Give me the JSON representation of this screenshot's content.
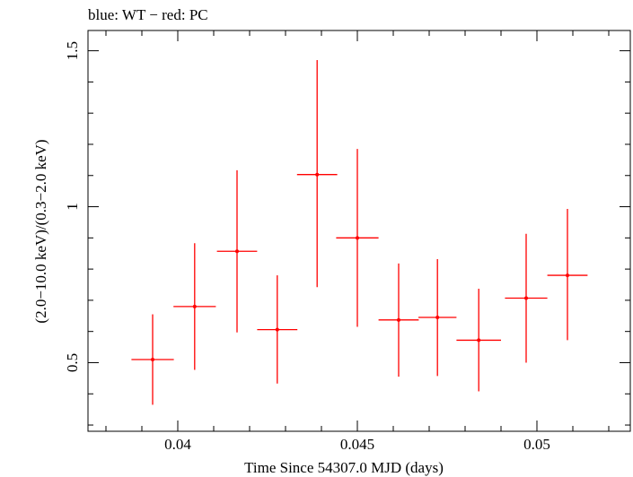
{
  "chart_data": {
    "type": "scatter",
    "title": "blue: WT − red: PC",
    "xlabel": "Time Since 54307.0 MJD (days)",
    "ylabel": "(2.0−10.0 keV)/(0.3−2.0 keV)",
    "xlim": [
      0.0375,
      0.0526
    ],
    "ylim": [
      0.28,
      1.565
    ],
    "x_ticks": [
      0.04,
      0.045,
      0.05
    ],
    "x_tick_labels": [
      "0.04",
      "0.045",
      "0.05"
    ],
    "y_ticks": [
      0.5,
      1,
      1.5
    ],
    "y_tick_labels": [
      "0.5",
      "1",
      "1.5"
    ],
    "grid": false,
    "series": [
      {
        "color": "#ff0000",
        "points": [
          {
            "x": 0.0393,
            "y": 0.51,
            "xerr": 0.00059,
            "ylo": 0.365,
            "yhi": 0.655
          },
          {
            "x": 0.04047,
            "y": 0.68,
            "xerr": 0.00059,
            "ylo": 0.477,
            "yhi": 0.883
          },
          {
            "x": 0.04165,
            "y": 0.857,
            "xerr": 0.00056,
            "ylo": 0.597,
            "yhi": 1.117
          },
          {
            "x": 0.04277,
            "y": 0.606,
            "xerr": 0.00056,
            "ylo": 0.433,
            "yhi": 0.78
          },
          {
            "x": 0.04388,
            "y": 1.103,
            "xerr": 0.00056,
            "ylo": 0.742,
            "yhi": 1.47
          },
          {
            "x": 0.045,
            "y": 0.9,
            "xerr": 0.00059,
            "ylo": 0.615,
            "yhi": 1.185
          },
          {
            "x": 0.04615,
            "y": 0.637,
            "xerr": 0.00056,
            "ylo": 0.455,
            "yhi": 0.818
          },
          {
            "x": 0.04723,
            "y": 0.645,
            "xerr": 0.00053,
            "ylo": 0.457,
            "yhi": 0.832
          },
          {
            "x": 0.04838,
            "y": 0.572,
            "xerr": 0.00062,
            "ylo": 0.408,
            "yhi": 0.737
          },
          {
            "x": 0.0497,
            "y": 0.707,
            "xerr": 0.00059,
            "ylo": 0.5,
            "yhi": 0.913
          },
          {
            "x": 0.05085,
            "y": 0.78,
            "xerr": 0.00056,
            "ylo": 0.572,
            "yhi": 0.993
          }
        ]
      }
    ]
  }
}
